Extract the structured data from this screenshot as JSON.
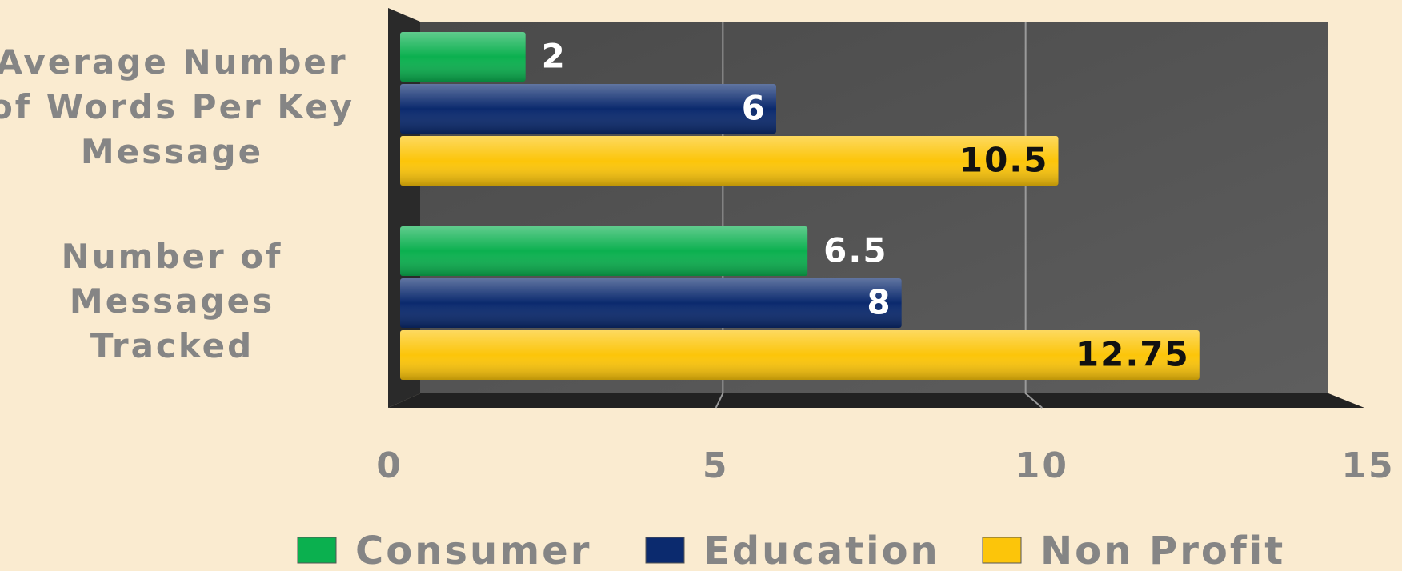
{
  "chart_data": {
    "type": "bar",
    "orientation": "horizontal",
    "categories": [
      "Average Number\nof Words Per Key\nMessage",
      "Number of\nMessages\nTracked"
    ],
    "series": [
      {
        "name": "Consumer",
        "color": "#0bb04f",
        "values": [
          2,
          6.5
        ]
      },
      {
        "name": "Education",
        "color": "#0b2a6e",
        "values": [
          6,
          8
        ]
      },
      {
        "name": "Non Profit",
        "color": "#fcc50a",
        "values": [
          10.5,
          12.75
        ]
      }
    ],
    "xlim": [
      0,
      15
    ],
    "xticks": [
      0,
      5,
      10,
      15
    ],
    "grid": true,
    "legend": "bottom"
  }
}
